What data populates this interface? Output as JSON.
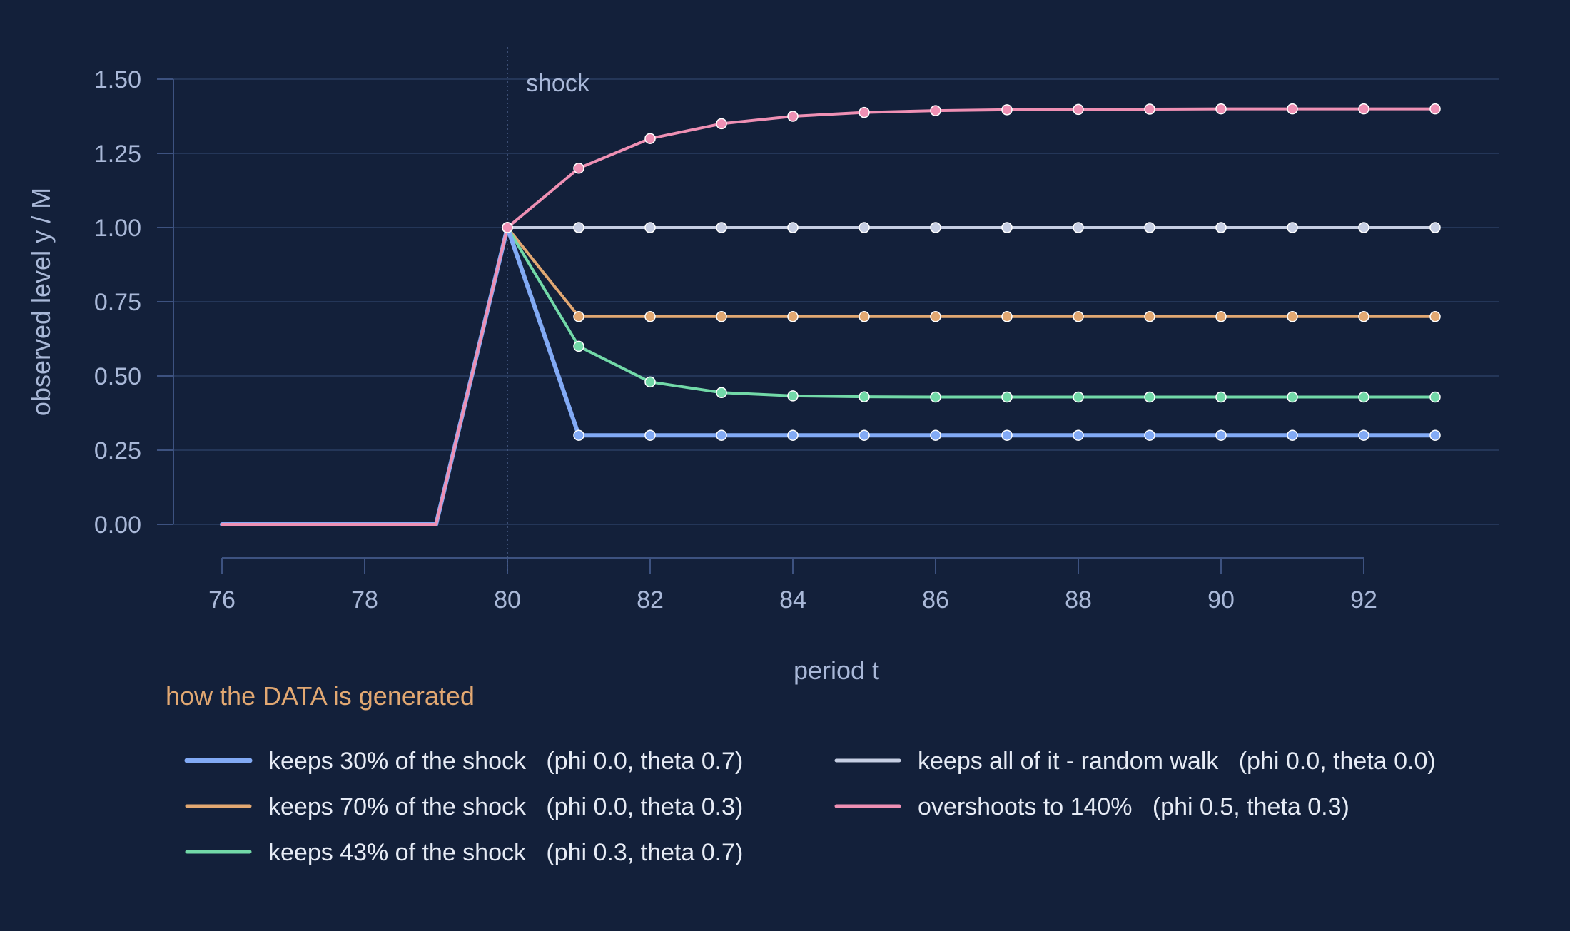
{
  "chart_data": {
    "type": "line",
    "title": "",
    "xlabel": "period t",
    "ylabel": "observed level  y / M",
    "xlim": [
      75,
      94
    ],
    "ylim": [
      -0.08,
      1.6
    ],
    "x_ticks": [
      76,
      78,
      80,
      82,
      84,
      86,
      88,
      90,
      92
    ],
    "y_ticks": [
      0.0,
      0.25,
      0.5,
      0.75,
      1.0,
      1.25,
      1.5
    ],
    "y_tick_labels": [
      "0.00",
      "0.25",
      "0.50",
      "0.75",
      "1.00",
      "1.25",
      "1.50"
    ],
    "grid": true,
    "legend_title": "how the DATA is generated",
    "legend_placement": "bottom",
    "annotation": {
      "text": "shock",
      "x": 80
    },
    "x": [
      76,
      77,
      78,
      79,
      80,
      81,
      82,
      83,
      84,
      85,
      86,
      87,
      88,
      89,
      90,
      91,
      92,
      93
    ],
    "series": [
      {
        "name": "keeps 30% of the shock   (phi 0.0, theta 0.7)",
        "color": "#82aaf5",
        "values": [
          0,
          0,
          0,
          0,
          1.0,
          0.3,
          0.3,
          0.3,
          0.3,
          0.3,
          0.3,
          0.3,
          0.3,
          0.3,
          0.3,
          0.3,
          0.3,
          0.3
        ]
      },
      {
        "name": "keeps 70% of the shock   (phi 0.0, theta 0.3)",
        "color": "#e2a872",
        "values": [
          0,
          0,
          0,
          0,
          1.0,
          0.7,
          0.7,
          0.7,
          0.7,
          0.7,
          0.7,
          0.7,
          0.7,
          0.7,
          0.7,
          0.7,
          0.7,
          0.7
        ]
      },
      {
        "name": "keeps 43% of the shock   (phi 0.3, theta 0.7)",
        "color": "#72d9a8",
        "values": [
          0,
          0,
          0,
          0,
          1.0,
          0.6,
          0.48,
          0.444,
          0.433,
          0.43,
          0.429,
          0.429,
          0.429,
          0.429,
          0.429,
          0.429,
          0.429,
          0.429
        ]
      },
      {
        "name": "keeps all of it - random walk   (phi 0.0, theta 0.0)",
        "color": "#c6cee3",
        "values": [
          0,
          0,
          0,
          0,
          1.0,
          1.0,
          1.0,
          1.0,
          1.0,
          1.0,
          1.0,
          1.0,
          1.0,
          1.0,
          1.0,
          1.0,
          1.0,
          1.0
        ]
      },
      {
        "name": "overshoots to 140%   (phi 0.5, theta 0.3)",
        "color": "#ef90b4",
        "values": [
          0,
          0,
          0,
          0,
          1.0,
          1.2,
          1.3,
          1.35,
          1.375,
          1.388,
          1.394,
          1.397,
          1.398,
          1.399,
          1.4,
          1.4,
          1.4,
          1.4
        ]
      }
    ],
    "draw_order": [
      3,
      1,
      2,
      0,
      4
    ],
    "colors": {
      "background": "#13203a",
      "grid": "#2a3d63",
      "axis": "#3d5280",
      "tick_text": "#a9b8d8",
      "legend_title": "#e2a872",
      "legend_text": "#e6ebf5"
    }
  }
}
